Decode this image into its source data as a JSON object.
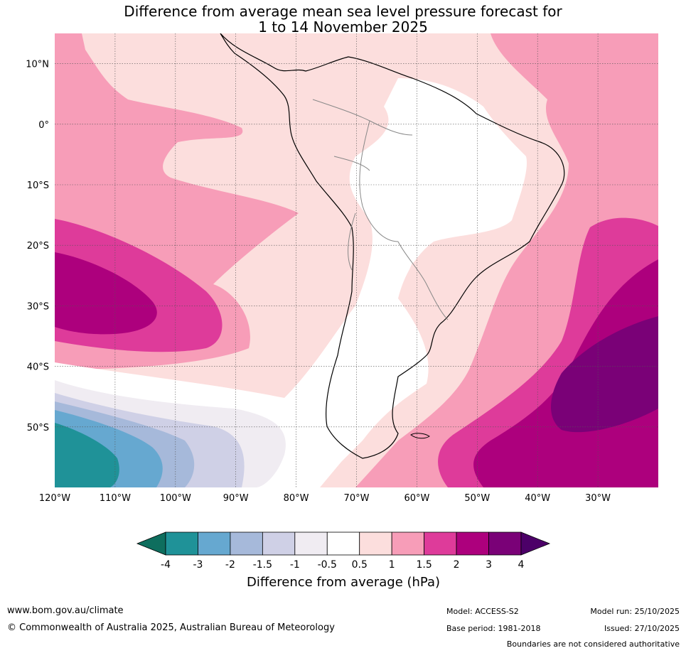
{
  "title": {
    "line1": "Difference from average mean sea level pressure forecast for",
    "line2": "1 to 14 November 2025"
  },
  "map": {
    "lat_labels": [
      "10°N",
      "0°",
      "10°S",
      "20°S",
      "30°S",
      "40°S",
      "50°S"
    ],
    "lon_labels": [
      "120°W",
      "110°W",
      "100°W",
      "90°W",
      "80°W",
      "70°W",
      "60°W",
      "50°W",
      "40°W",
      "30°W"
    ],
    "lon_range_deg": [
      -120,
      -20
    ],
    "lat_range_deg": [
      -60,
      15
    ]
  },
  "colorbar": {
    "title": "Difference from average (hPa)",
    "ticks": [
      "-4",
      "-3",
      "-2",
      "-1.5",
      "-1",
      "-0.5",
      "0.5",
      "1",
      "1.5",
      "2",
      "3",
      "4"
    ],
    "colors": [
      "#0e6e5e",
      "#1f9298",
      "#66a8d0",
      "#a6b9da",
      "#cfd0e6",
      "#f0ecf2",
      "#ffffff",
      "#fcdedd",
      "#f79db8",
      "#de3b9a",
      "#ad007d",
      "#7a0177",
      "#4c0068"
    ]
  },
  "footer": {
    "website": "www.bom.gov.au/climate",
    "copyright": "© Commonwealth of Australia 2025, Australian Bureau of Meteorology",
    "model": "Model: ACCESS-S2",
    "base_period": "Base period: 1981-2018",
    "model_run": "Model run: 25/10/2025",
    "issued": "Issued: 27/10/2025",
    "disclaimer": "Boundaries are not considered authoritative"
  }
}
